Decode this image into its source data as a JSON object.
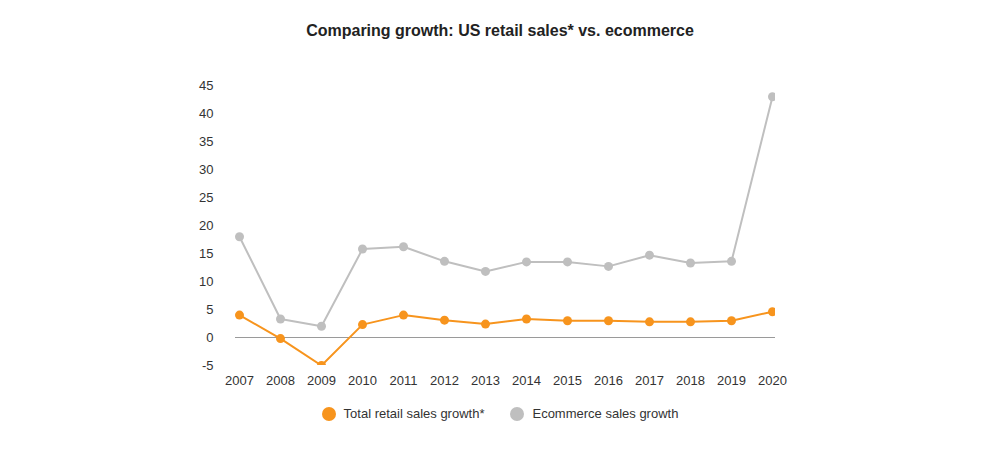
{
  "chart_data": {
    "type": "line",
    "title": "Comparing growth: US retail sales* vs. ecommerce",
    "x": [
      2007,
      2008,
      2009,
      2010,
      2011,
      2012,
      2013,
      2014,
      2015,
      2016,
      2017,
      2018,
      2019,
      2020
    ],
    "series": [
      {
        "name": "Total retail sales growth*",
        "color": "#f7941d",
        "marker": "circle",
        "values": [
          4,
          -0.2,
          -5,
          2.3,
          4,
          3.1,
          2.4,
          3.3,
          3,
          3,
          2.8,
          2.8,
          3,
          4.6
        ]
      },
      {
        "name": "Ecommerce sales growth",
        "color": "#bfbfbf",
        "marker": "circle",
        "values": [
          18,
          3.3,
          2,
          15.8,
          16.2,
          13.6,
          11.8,
          13.5,
          13.5,
          12.7,
          14.7,
          13.3,
          13.6,
          43
        ]
      }
    ],
    "ylim": [
      -5,
      45
    ],
    "yticks": [
      -5,
      0,
      5,
      10,
      15,
      20,
      25,
      30,
      35,
      40,
      45
    ],
    "xticks": [
      2007,
      2008,
      2009,
      2010,
      2011,
      2012,
      2013,
      2014,
      2015,
      2016,
      2017,
      2018,
      2019,
      2020
    ],
    "grid": false,
    "legend": "bottom"
  }
}
